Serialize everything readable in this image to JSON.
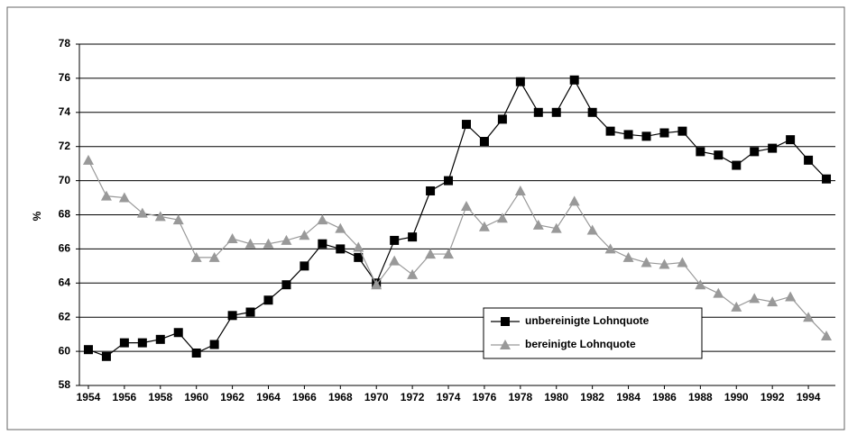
{
  "chart_data": {
    "type": "line",
    "y_label": "%",
    "x": [
      1954,
      1955,
      1956,
      1957,
      1958,
      1959,
      1960,
      1961,
      1962,
      1963,
      1964,
      1965,
      1966,
      1967,
      1968,
      1969,
      1970,
      1971,
      1972,
      1973,
      1974,
      1975,
      1976,
      1977,
      1978,
      1979,
      1980,
      1981,
      1982,
      1983,
      1984,
      1985,
      1986,
      1987,
      1988,
      1989,
      1990,
      1991,
      1992,
      1993,
      1994,
      1995
    ],
    "series": [
      {
        "name": "unbereinigte Lohnquote",
        "color": "#000000",
        "marker": "square",
        "values": [
          60.1,
          59.7,
          60.5,
          60.5,
          60.7,
          61.1,
          59.9,
          60.4,
          62.1,
          62.3,
          63.0,
          63.9,
          65.0,
          66.3,
          66.0,
          65.5,
          64.0,
          66.5,
          66.7,
          69.4,
          70.0,
          73.3,
          72.3,
          73.6,
          75.8,
          74.0,
          74.0,
          75.9,
          74.0,
          72.9,
          72.7,
          72.6,
          72.8,
          72.9,
          71.7,
          71.5,
          70.9,
          71.7,
          71.9,
          72.4,
          71.2,
          70.1
        ]
      },
      {
        "name": "bereinigte Lohnquote",
        "color": "#999999",
        "marker": "triangle",
        "values": [
          71.2,
          69.1,
          69.0,
          68.1,
          67.9,
          67.7,
          65.5,
          65.5,
          66.6,
          66.3,
          66.3,
          66.5,
          66.8,
          67.7,
          67.2,
          66.1,
          63.9,
          65.3,
          64.5,
          65.7,
          65.7,
          68.5,
          67.3,
          67.8,
          69.4,
          67.4,
          67.2,
          68.8,
          67.1,
          66.0,
          65.5,
          65.2,
          65.1,
          65.2,
          63.9,
          63.4,
          62.6,
          63.1,
          62.9,
          63.2,
          62.0,
          60.9
        ]
      }
    ],
    "xlim": [
      1953.5,
      1995.5
    ],
    "xticks": [
      1954,
      1956,
      1958,
      1960,
      1962,
      1964,
      1966,
      1968,
      1970,
      1972,
      1974,
      1976,
      1978,
      1980,
      1982,
      1984,
      1986,
      1988,
      1990,
      1992,
      1994
    ],
    "ylim": [
      58,
      78
    ],
    "yticks": [
      58,
      60,
      62,
      64,
      66,
      68,
      70,
      72,
      74,
      76,
      78
    ],
    "grid": true,
    "legend": "lower-right"
  }
}
